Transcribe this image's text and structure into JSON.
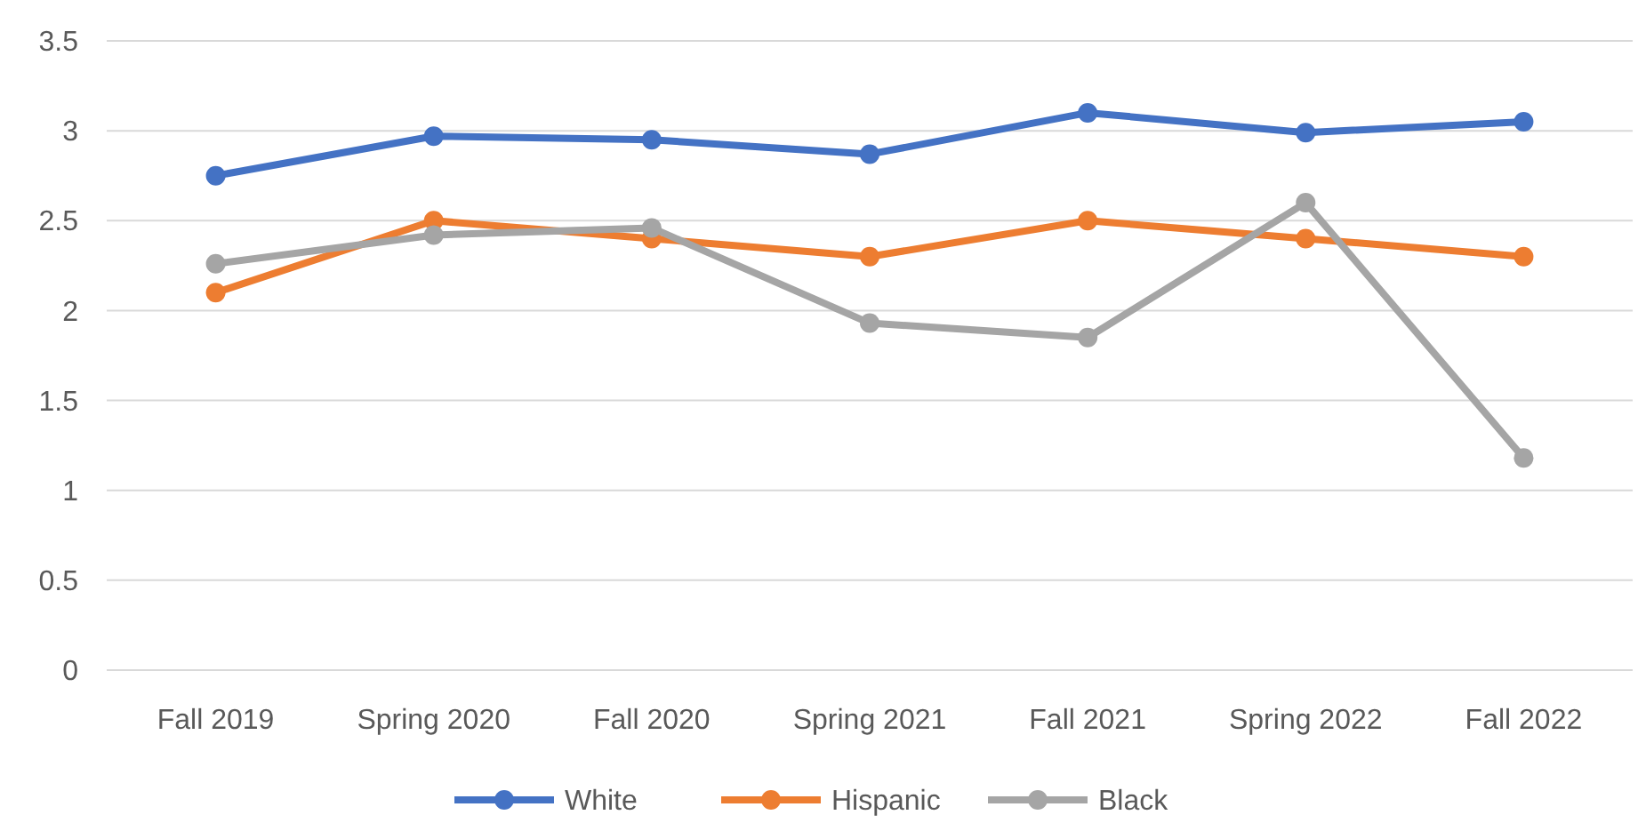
{
  "chart_data": {
    "type": "line",
    "categories": [
      "Fall 2019",
      "Spring 2020",
      "Fall 2020",
      "Spring 2021",
      "Fall 2021",
      "Spring 2022",
      "Fall 2022"
    ],
    "series": [
      {
        "name": "White",
        "color": "#4472c4",
        "values": [
          2.75,
          2.97,
          2.95,
          2.87,
          3.1,
          2.99,
          3.05
        ]
      },
      {
        "name": "Hispanic",
        "color": "#ed7d31",
        "values": [
          2.1,
          2.5,
          2.4,
          2.3,
          2.5,
          2.4,
          2.3
        ]
      },
      {
        "name": "Black",
        "color": "#a5a5a5",
        "values": [
          2.26,
          2.42,
          2.46,
          1.93,
          1.85,
          2.6,
          1.18
        ]
      }
    ],
    "ylim": [
      0,
      3.5
    ],
    "yticks": [
      0,
      0.5,
      1,
      1.5,
      2,
      2.5,
      3,
      3.5
    ],
    "grid": "y",
    "legend": "bottom",
    "marker": "circle",
    "line_style": "solid"
  }
}
